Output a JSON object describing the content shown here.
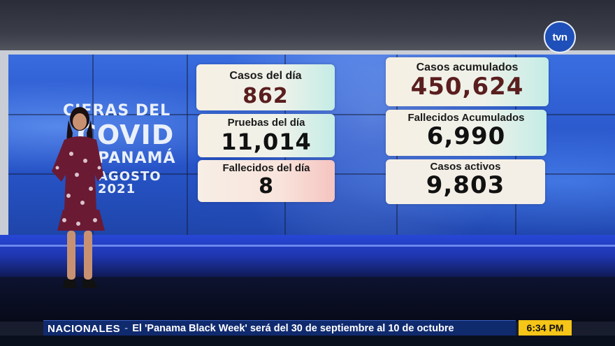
{
  "channel": {
    "logo_text": "tvn"
  },
  "wall_title": {
    "line1": "CIFRAS DEL",
    "line2": "COVID",
    "line3": "PANAMÁ",
    "line4": "AGOSTO 2021"
  },
  "stats_left": [
    {
      "label": "Casos del día",
      "value": "862",
      "value_color": "#5a1e1e"
    },
    {
      "label": "Pruebas del día",
      "value": "11,014",
      "value_color": "#111111"
    },
    {
      "label": "Fallecidos del día",
      "value": "8",
      "value_color": "#111111"
    }
  ],
  "stats_right": [
    {
      "label": "Casos acumulados",
      "value": "450,624",
      "value_color": "#5a1e1e"
    },
    {
      "label": "Fallecidos Acumulados",
      "value": "6,990",
      "value_color": "#111111"
    },
    {
      "label": "Casos activos",
      "value": "9,803",
      "value_color": "#111111"
    }
  ],
  "ticker": {
    "section": "NACIONALES",
    "separator": "-",
    "headline": "El 'Panama Black Week' será del 30 de septiembre al 10 de octubre"
  },
  "clock": {
    "time": "6:34 PM"
  },
  "colors": {
    "ticker_bg": "#102a6e",
    "clock_bg": "#f5c518",
    "logo_bg": "#1f4fb8",
    "wall_blue": "#2755c8"
  }
}
